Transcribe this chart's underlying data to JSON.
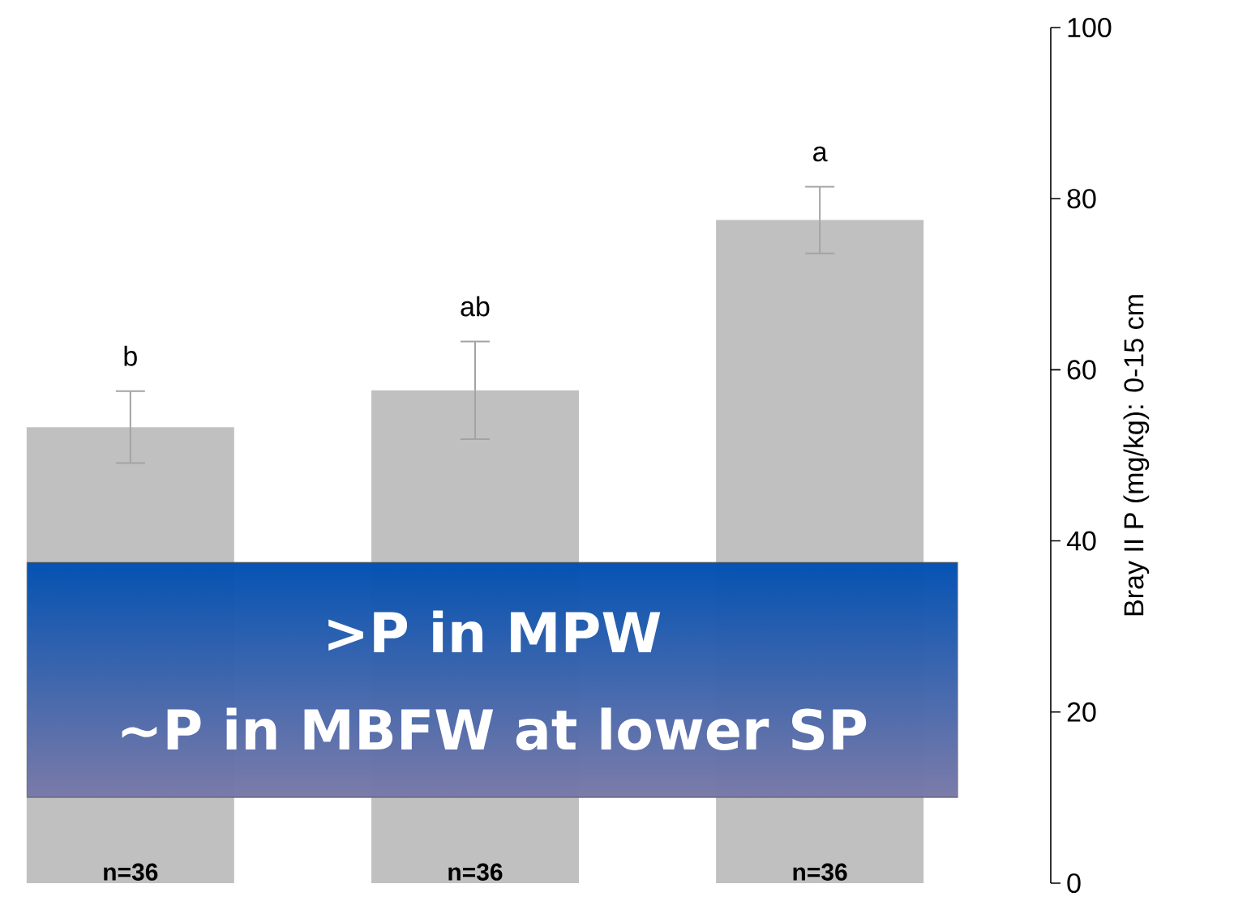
{
  "chart_data": {
    "type": "bar",
    "ylabel": "Bray II P (mg/kg): 0-15 cm",
    "categories": [
      null,
      null,
      null
    ],
    "series": [
      {
        "color": "#c0c0c0",
        "values": [
          53.3,
          57.6,
          77.5
        ],
        "errors": [
          4.2,
          5.7,
          3.9
        ],
        "value_labels": [
          "b",
          "ab",
          "a"
        ]
      }
    ],
    "ylim": [
      0,
      100
    ],
    "yticks": [
      0,
      20,
      40,
      60,
      80,
      100
    ],
    "annotations": [
      "n=36",
      "n=36",
      "n=36",
      ">P in MPW",
      "~P in MBFW at lower SP"
    ]
  }
}
